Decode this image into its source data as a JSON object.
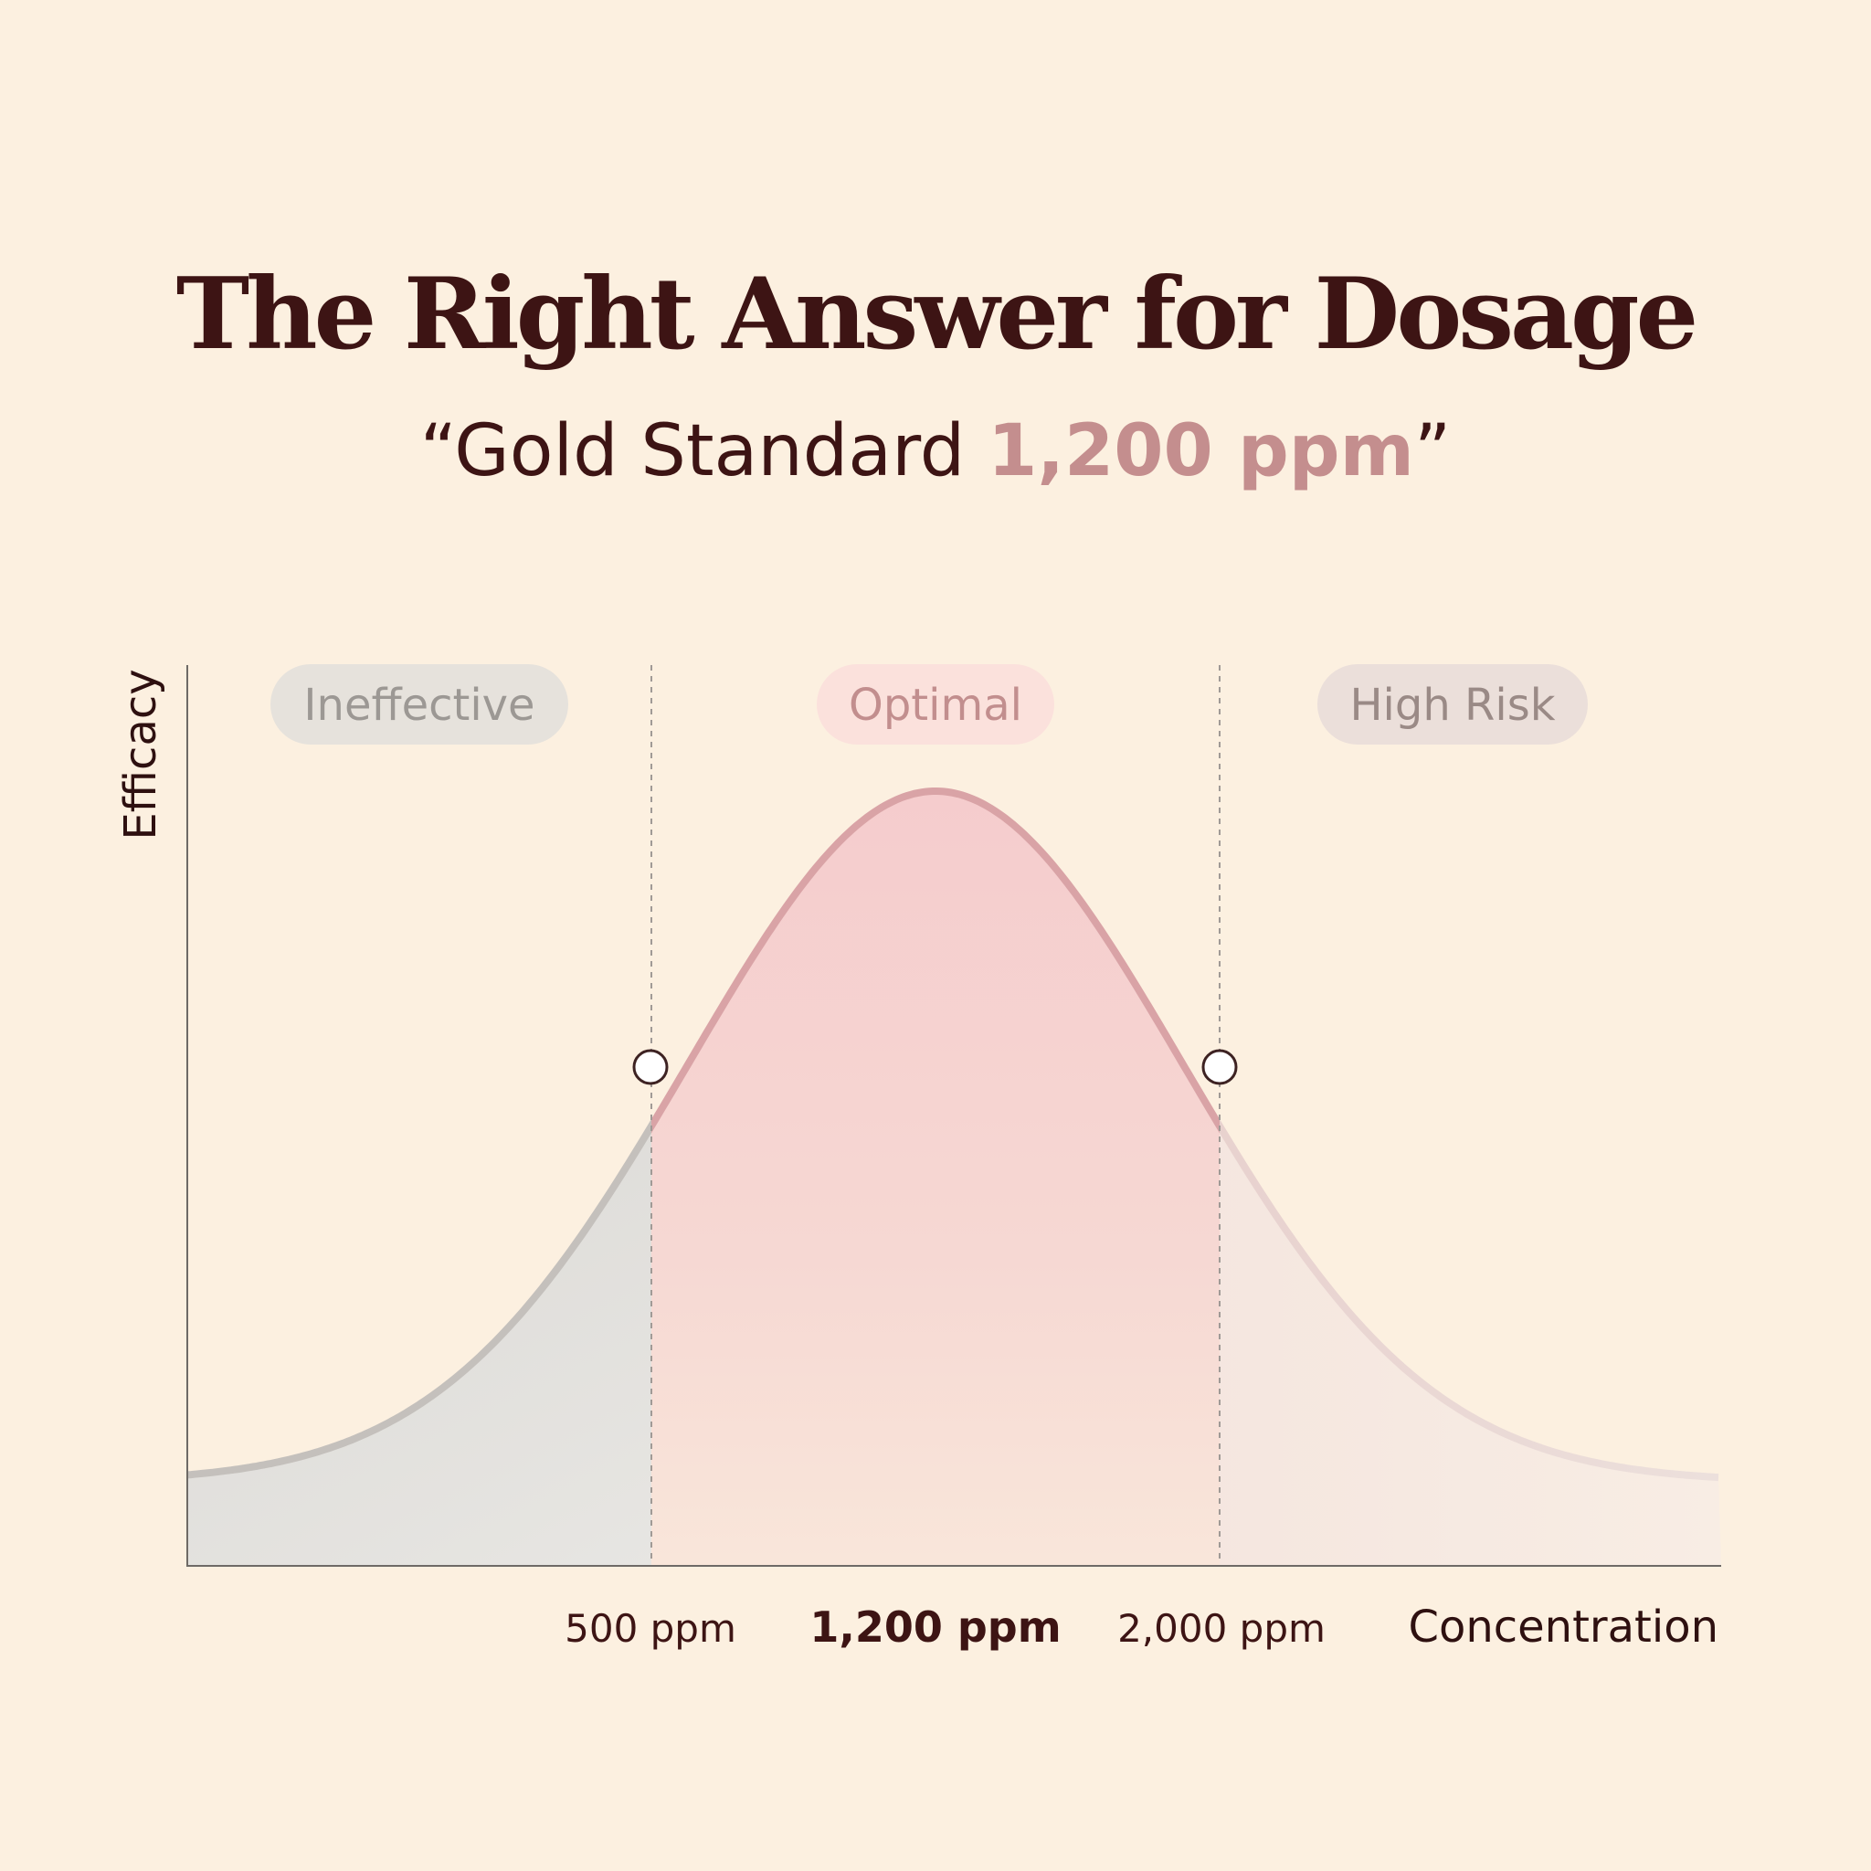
{
  "title": "The Right Answer for Dosage",
  "subtitle": {
    "prefix": "“Gold Standard ",
    "highlight": "1,200 ppm",
    "suffix": "”"
  },
  "colors": {
    "background": "#fcf0e0",
    "text": "#3d1414",
    "accent": "#c48e8e",
    "curve_optimal": "#d9a3a6",
    "curve_ineffective": "#c4c0bc",
    "fill_optimal": "#f4cfd0",
    "fill_ineffective": "#dcdad6"
  },
  "chart_data": {
    "type": "area",
    "title": "The Right Answer for Dosage",
    "xlabel": "Concentration",
    "ylabel": "Efficacy",
    "curve": "bell",
    "peak": 1200,
    "zones": [
      {
        "name": "Ineffective",
        "from": null,
        "to": 500
      },
      {
        "name": "Optimal",
        "from": 500,
        "to": 2000
      },
      {
        "name": "High Risk",
        "from": 2000,
        "to": null
      }
    ],
    "boundary_markers": [
      500,
      2000
    ],
    "x_ticks": [
      {
        "value": 500,
        "label": "500 ppm",
        "bold": false
      },
      {
        "value": 1200,
        "label": "1,200 ppm",
        "bold": true
      },
      {
        "value": 2000,
        "label": "2,000 ppm",
        "bold": false
      }
    ],
    "grid": false,
    "y_ticks": false
  }
}
